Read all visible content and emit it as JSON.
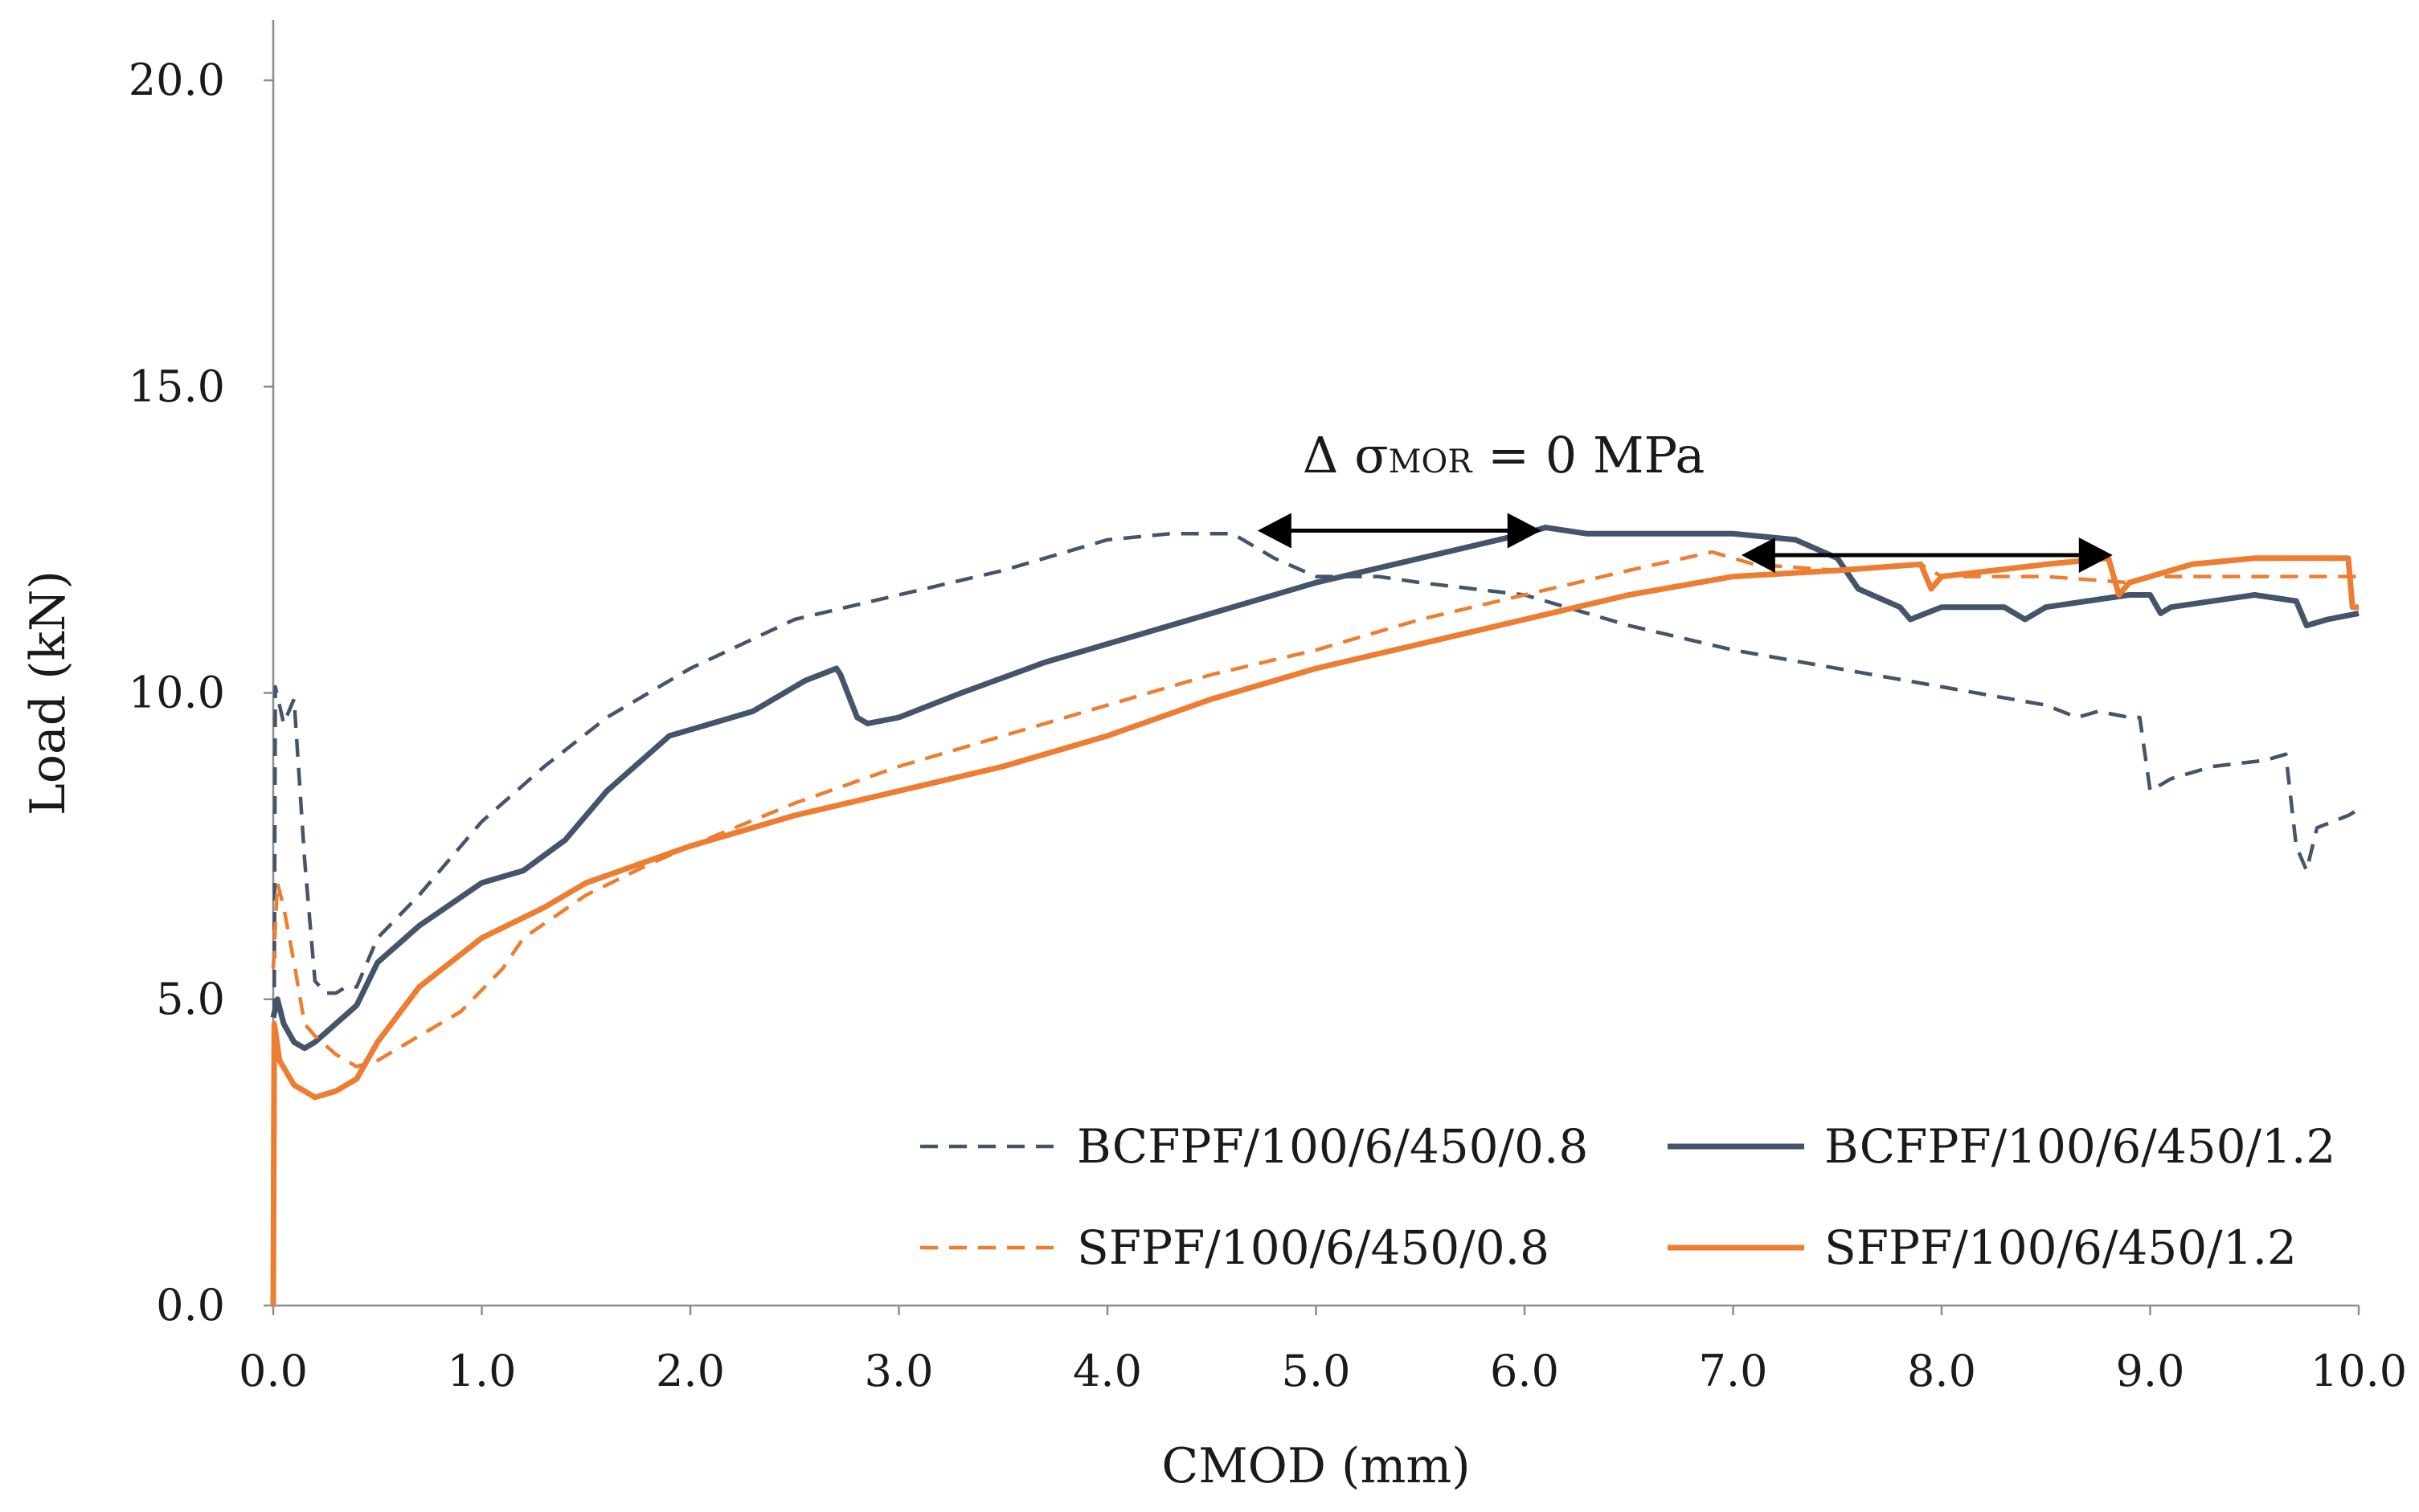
{
  "chart_data": {
    "type": "line",
    "title": "",
    "xlabel": "CMOD (mm)",
    "ylabel": "Load (kN)",
    "xlim": [
      0,
      10
    ],
    "ylim": [
      0,
      20
    ],
    "x_ticks": [
      "0.0",
      "1.0",
      "2.0",
      "3.0",
      "4.0",
      "5.0",
      "6.0",
      "7.0",
      "8.0",
      "9.0",
      "10.0"
    ],
    "y_ticks": [
      "0.0",
      "5.0",
      "10.0",
      "15.0",
      "20.0"
    ],
    "grid": false,
    "legend_position": "bottom-right",
    "series": [
      {
        "name": "BCFPF/100/6/450/0.8",
        "color": "#44546A",
        "dash": "dashed",
        "points": [
          [
            0.0,
            0.0
          ],
          [
            0.01,
            10.1
          ],
          [
            0.05,
            9.5
          ],
          [
            0.1,
            9.9
          ],
          [
            0.15,
            7.3
          ],
          [
            0.2,
            5.3
          ],
          [
            0.25,
            5.1
          ],
          [
            0.3,
            5.1
          ],
          [
            0.35,
            5.2
          ],
          [
            0.4,
            5.2
          ],
          [
            0.5,
            6.0
          ],
          [
            0.7,
            6.7
          ],
          [
            1.0,
            7.9
          ],
          [
            1.3,
            8.8
          ],
          [
            1.6,
            9.6
          ],
          [
            2.0,
            10.4
          ],
          [
            2.5,
            11.2
          ],
          [
            3.0,
            11.6
          ],
          [
            3.5,
            12.0
          ],
          [
            4.0,
            12.5
          ],
          [
            4.3,
            12.6
          ],
          [
            4.6,
            12.6
          ],
          [
            4.8,
            12.2
          ],
          [
            5.0,
            11.9
          ],
          [
            5.3,
            11.9
          ],
          [
            5.5,
            11.8
          ],
          [
            6.0,
            11.6
          ],
          [
            6.5,
            11.1
          ],
          [
            7.0,
            10.7
          ],
          [
            7.5,
            10.4
          ],
          [
            8.0,
            10.1
          ],
          [
            8.5,
            9.8
          ],
          [
            8.65,
            9.6
          ],
          [
            8.75,
            9.7
          ],
          [
            8.9,
            9.6
          ],
          [
            8.95,
            9.6
          ],
          [
            9.0,
            8.4
          ],
          [
            9.1,
            8.6
          ],
          [
            9.3,
            8.8
          ],
          [
            9.55,
            8.9
          ],
          [
            9.65,
            9.0
          ],
          [
            9.7,
            7.5
          ],
          [
            9.75,
            7.1
          ],
          [
            9.8,
            7.8
          ],
          [
            9.95,
            8.0
          ],
          [
            10.0,
            8.1
          ]
        ]
      },
      {
        "name": "BCFPF/100/6/450/1.2",
        "color": "#44546A",
        "dash": "solid",
        "points": [
          [
            0.0,
            4.7
          ],
          [
            0.02,
            5.0
          ],
          [
            0.05,
            4.6
          ],
          [
            0.1,
            4.3
          ],
          [
            0.15,
            4.2
          ],
          [
            0.2,
            4.3
          ],
          [
            0.3,
            4.6
          ],
          [
            0.4,
            4.9
          ],
          [
            0.5,
            5.6
          ],
          [
            0.7,
            6.2
          ],
          [
            1.0,
            6.9
          ],
          [
            1.2,
            7.1
          ],
          [
            1.4,
            7.6
          ],
          [
            1.6,
            8.4
          ],
          [
            1.9,
            9.3
          ],
          [
            2.0,
            9.4
          ],
          [
            2.3,
            9.7
          ],
          [
            2.55,
            10.2
          ],
          [
            2.7,
            10.4
          ],
          [
            2.72,
            10.3
          ],
          [
            2.8,
            9.6
          ],
          [
            2.85,
            9.5
          ],
          [
            3.0,
            9.6
          ],
          [
            3.3,
            10.0
          ],
          [
            3.7,
            10.5
          ],
          [
            4.0,
            10.8
          ],
          [
            4.5,
            11.3
          ],
          [
            5.0,
            11.8
          ],
          [
            5.5,
            12.2
          ],
          [
            6.0,
            12.6
          ],
          [
            6.1,
            12.7
          ],
          [
            6.3,
            12.6
          ],
          [
            6.7,
            12.6
          ],
          [
            7.0,
            12.6
          ],
          [
            7.3,
            12.5
          ],
          [
            7.5,
            12.2
          ],
          [
            7.6,
            11.7
          ],
          [
            7.8,
            11.4
          ],
          [
            7.85,
            11.2
          ],
          [
            8.0,
            11.4
          ],
          [
            8.3,
            11.4
          ],
          [
            8.4,
            11.2
          ],
          [
            8.5,
            11.4
          ],
          [
            8.9,
            11.6
          ],
          [
            9.0,
            11.6
          ],
          [
            9.05,
            11.3
          ],
          [
            9.1,
            11.4
          ],
          [
            9.5,
            11.6
          ],
          [
            9.7,
            11.5
          ],
          [
            9.75,
            11.1
          ],
          [
            9.85,
            11.2
          ],
          [
            10.0,
            11.3
          ]
        ]
      },
      {
        "name": "SFPF/100/6/450/0.8",
        "color": "#ED7D31",
        "dash": "dashed",
        "points": [
          [
            0.0,
            5.5
          ],
          [
            0.02,
            6.9
          ],
          [
            0.05,
            6.5
          ],
          [
            0.1,
            5.6
          ],
          [
            0.15,
            4.6
          ],
          [
            0.2,
            4.4
          ],
          [
            0.3,
            4.1
          ],
          [
            0.4,
            3.9
          ],
          [
            0.5,
            4.0
          ],
          [
            0.7,
            4.4
          ],
          [
            0.9,
            4.8
          ],
          [
            1.1,
            5.5
          ],
          [
            1.2,
            6.0
          ],
          [
            1.5,
            6.7
          ],
          [
            1.8,
            7.2
          ],
          [
            2.0,
            7.5
          ],
          [
            2.5,
            8.2
          ],
          [
            3.0,
            8.8
          ],
          [
            3.5,
            9.3
          ],
          [
            4.0,
            9.8
          ],
          [
            4.5,
            10.3
          ],
          [
            5.0,
            10.7
          ],
          [
            5.5,
            11.2
          ],
          [
            6.0,
            11.6
          ],
          [
            6.5,
            12.0
          ],
          [
            6.9,
            12.3
          ],
          [
            7.1,
            12.1
          ],
          [
            7.5,
            12.0
          ],
          [
            7.9,
            12.1
          ],
          [
            8.0,
            11.9
          ],
          [
            8.5,
            11.9
          ],
          [
            8.9,
            11.8
          ],
          [
            9.0,
            11.9
          ],
          [
            9.5,
            11.9
          ],
          [
            10.0,
            11.9
          ]
        ]
      },
      {
        "name": "SFPF/100/6/450/1.2",
        "color": "#ED7D31",
        "dash": "solid",
        "points": [
          [
            0.0,
            0.0
          ],
          [
            0.005,
            4.6
          ],
          [
            0.03,
            4.0
          ],
          [
            0.1,
            3.6
          ],
          [
            0.2,
            3.4
          ],
          [
            0.3,
            3.5
          ],
          [
            0.4,
            3.7
          ],
          [
            0.5,
            4.3
          ],
          [
            0.7,
            5.2
          ],
          [
            1.0,
            6.0
          ],
          [
            1.3,
            6.5
          ],
          [
            1.5,
            6.9
          ],
          [
            2.0,
            7.5
          ],
          [
            2.5,
            8.0
          ],
          [
            3.0,
            8.4
          ],
          [
            3.5,
            8.8
          ],
          [
            4.0,
            9.3
          ],
          [
            4.5,
            9.9
          ],
          [
            5.0,
            10.4
          ],
          [
            5.5,
            10.8
          ],
          [
            6.0,
            11.2
          ],
          [
            6.5,
            11.6
          ],
          [
            7.0,
            11.9
          ],
          [
            7.5,
            12.0
          ],
          [
            7.9,
            12.1
          ],
          [
            7.95,
            11.7
          ],
          [
            8.0,
            11.9
          ],
          [
            8.5,
            12.1
          ],
          [
            8.8,
            12.2
          ],
          [
            8.85,
            11.6
          ],
          [
            8.9,
            11.8
          ],
          [
            9.2,
            12.1
          ],
          [
            9.5,
            12.2
          ],
          [
            9.95,
            12.2
          ],
          [
            9.97,
            11.4
          ],
          [
            10.0,
            11.4
          ]
        ]
      }
    ],
    "annotations": [
      {
        "text": "Δ σMOR = 0 MPa",
        "base": "Δ σ",
        "sub": "MOR",
        "tail": " = 0 MPa",
        "x": 5.9,
        "y": 13.6
      },
      {
        "type": "double-arrow",
        "x1": 4.72,
        "x2": 6.08,
        "y": 12.65
      },
      {
        "type": "double-arrow",
        "x1": 7.04,
        "x2": 8.82,
        "y": 12.25
      }
    ]
  }
}
